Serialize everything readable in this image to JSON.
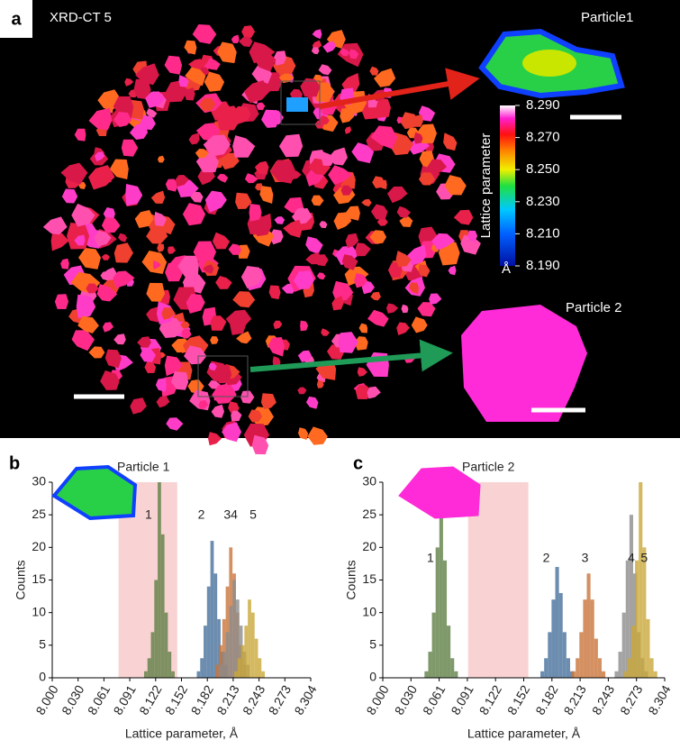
{
  "panel_a": {
    "letter": "a",
    "title": "XRD-CT 5",
    "particle1": "Particle1",
    "particle2": "Particle 2",
    "colorbar": {
      "title": "Lattice parameter",
      "unit": "Å",
      "range": [
        8.19,
        8.29
      ],
      "ticks": [
        {
          "value": 8.29,
          "label": "8.290"
        },
        {
          "value": 8.27,
          "label": "8.270"
        },
        {
          "value": 8.25,
          "label": "8.250"
        },
        {
          "value": 8.23,
          "label": "8.230"
        },
        {
          "value": 8.21,
          "label": "8.210"
        },
        {
          "value": 8.19,
          "label": "8.190"
        }
      ]
    }
  },
  "chart_data": [
    {
      "type": "histogram",
      "letter": "b",
      "title": "Particle 1",
      "xlabel": "Lattice parameter, Å",
      "ylabel": "Counts",
      "xlim": [
        8.0,
        8.304
      ],
      "ylim": [
        0,
        30
      ],
      "yticks": [
        0,
        5,
        10,
        15,
        20,
        25,
        30
      ],
      "xticks": [
        {
          "value": 8.0,
          "label": "8.000"
        },
        {
          "value": 8.0304,
          "label": "8.030"
        },
        {
          "value": 8.0608,
          "label": "8.061"
        },
        {
          "value": 8.0912,
          "label": "8.091"
        },
        {
          "value": 8.1216,
          "label": "8.122"
        },
        {
          "value": 8.152,
          "label": "8.152"
        },
        {
          "value": 8.1824,
          "label": "8.182"
        },
        {
          "value": 8.2128,
          "label": "8.213"
        },
        {
          "value": 8.2432,
          "label": "8.243"
        },
        {
          "value": 8.2736,
          "label": "8.273"
        },
        {
          "value": 8.304,
          "label": "8.304"
        }
      ],
      "highlight": [
        8.078,
        8.147
      ],
      "highlight_color": "#f9d3d3",
      "series": [
        {
          "name": "1",
          "color": "#5f7f45",
          "bins": [
            8.108,
            8.112,
            8.116,
            8.12,
            8.124,
            8.128,
            8.132,
            8.136,
            8.14,
            8.144
          ],
          "values": [
            1,
            3,
            7,
            15,
            30,
            22,
            10,
            4,
            1
          ]
        },
        {
          "name": "2",
          "color": "#47709b",
          "bins": [
            8.17,
            8.174,
            8.178,
            8.182,
            8.186,
            8.19,
            8.194,
            8.198,
            8.202,
            8.206
          ],
          "values": [
            1,
            3,
            8,
            14,
            21,
            16,
            9,
            4,
            2
          ]
        },
        {
          "name": "3",
          "color": "#c9743a",
          "bins": [
            8.192,
            8.196,
            8.2,
            8.204,
            8.208,
            8.212,
            8.216,
            8.22,
            8.224,
            8.228
          ],
          "values": [
            2,
            5,
            9,
            14,
            20,
            16,
            10,
            5,
            2
          ]
        },
        {
          "name": "4",
          "color": "#8c8c8c",
          "bins": [
            8.196,
            8.2,
            8.204,
            8.208,
            8.212,
            8.216,
            8.22,
            8.224,
            8.228,
            8.232
          ],
          "values": [
            2,
            4,
            7,
            11,
            15,
            12,
            8,
            4,
            2
          ]
        },
        {
          "name": "5",
          "color": "#c9a83a",
          "bins": [
            8.214,
            8.218,
            8.222,
            8.226,
            8.23,
            8.234,
            8.238,
            8.242,
            8.246,
            8.25
          ],
          "values": [
            1,
            3,
            5,
            8,
            12,
            10,
            6,
            3,
            1
          ]
        }
      ]
    },
    {
      "type": "histogram",
      "letter": "c",
      "title": "Particle 2",
      "xlabel": "Lattice parameter, Å",
      "ylabel": "Counts",
      "xlim": [
        8.0,
        8.304
      ],
      "ylim": [
        0,
        30
      ],
      "yticks": [
        0,
        5,
        10,
        15,
        20,
        25,
        30
      ],
      "xticks": [
        {
          "value": 8.0,
          "label": "8.000"
        },
        {
          "value": 8.0304,
          "label": "8.030"
        },
        {
          "value": 8.0608,
          "label": "8.061"
        },
        {
          "value": 8.0912,
          "label": "8.091"
        },
        {
          "value": 8.1216,
          "label": "8.122"
        },
        {
          "value": 8.152,
          "label": "8.152"
        },
        {
          "value": 8.1824,
          "label": "8.182"
        },
        {
          "value": 8.2128,
          "label": "8.213"
        },
        {
          "value": 8.2432,
          "label": "8.243"
        },
        {
          "value": 8.2736,
          "label": "8.273"
        },
        {
          "value": 8.304,
          "label": "8.304"
        }
      ],
      "highlight": [
        8.092,
        8.157
      ],
      "highlight_color": "#f9d3d3",
      "series": [
        {
          "name": "1",
          "color": "#5f7f45",
          "bins": [
            8.045,
            8.049,
            8.053,
            8.057,
            8.061,
            8.065,
            8.069,
            8.073,
            8.077,
            8.081
          ],
          "values": [
            1,
            4,
            10,
            20,
            27,
            18,
            8,
            3,
            1
          ]
        },
        {
          "name": "2",
          "color": "#47709b",
          "bins": [
            8.17,
            8.174,
            8.178,
            8.182,
            8.186,
            8.19,
            8.194,
            8.198,
            8.202,
            8.206
          ],
          "values": [
            1,
            3,
            7,
            12,
            17,
            13,
            7,
            3,
            1
          ]
        },
        {
          "name": "3",
          "color": "#c9743a",
          "bins": [
            8.204,
            8.208,
            8.212,
            8.216,
            8.22,
            8.224,
            8.228,
            8.232,
            8.236,
            8.24
          ],
          "values": [
            1,
            3,
            7,
            12,
            16,
            12,
            6,
            3,
            1
          ]
        },
        {
          "name": "4",
          "color": "#8c8c8c",
          "bins": [
            8.25,
            8.254,
            8.258,
            8.262,
            8.266,
            8.27,
            8.274,
            8.278,
            8.282,
            8.286
          ],
          "values": [
            1,
            4,
            10,
            18,
            25,
            16,
            7,
            3,
            1
          ]
        },
        {
          "name": "5",
          "color": "#c9a83a",
          "bins": [
            8.26,
            8.264,
            8.268,
            8.272,
            8.276,
            8.28,
            8.284,
            8.288,
            8.292,
            8.296
          ],
          "values": [
            1,
            3,
            8,
            18,
            30,
            20,
            9,
            3,
            1
          ]
        }
      ]
    }
  ]
}
